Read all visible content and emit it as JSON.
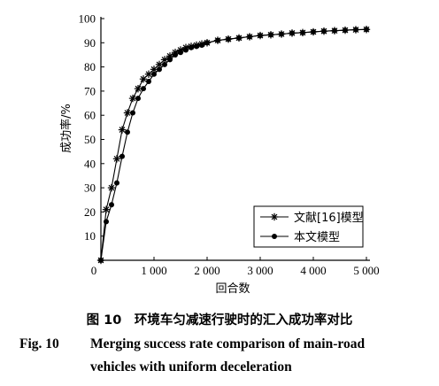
{
  "chart_data": {
    "type": "line",
    "xlabel": "回合数",
    "ylabel": "成功率/%",
    "xlim": [
      0,
      5000
    ],
    "ylim": [
      0,
      100
    ],
    "xticks": [
      1000,
      2000,
      3000,
      4000,
      5000
    ],
    "xtick_labels": [
      "1 000",
      "2 000",
      "3 000",
      "4 000",
      "5 000"
    ],
    "origin_label": "0",
    "yticks": [
      10,
      20,
      30,
      40,
      50,
      60,
      70,
      80,
      90,
      100
    ],
    "grid": false,
    "legend_position": "lower-right",
    "series": [
      {
        "name": "文献[16]模型",
        "marker": "asterisk",
        "x": [
          0,
          100,
          200,
          300,
          400,
          500,
          600,
          700,
          800,
          900,
          1000,
          1100,
          1200,
          1300,
          1400,
          1500,
          1600,
          1700,
          1800,
          1900,
          2000,
          2200,
          2400,
          2600,
          2800,
          3000,
          3200,
          3400,
          3600,
          3800,
          4000,
          4200,
          4400,
          4600,
          4800,
          5000
        ],
        "values": [
          0,
          21,
          30,
          42,
          54,
          61,
          67,
          71,
          75,
          77,
          79,
          81,
          83,
          84.5,
          86,
          87,
          88,
          88.5,
          89,
          89.5,
          90,
          91,
          91.5,
          92,
          92.5,
          93,
          93.3,
          93.6,
          94,
          94.2,
          94.5,
          94.8,
          95,
          95.2,
          95.4,
          95.5
        ]
      },
      {
        "name": "本文模型",
        "marker": "dot",
        "x": [
          0,
          100,
          200,
          300,
          400,
          500,
          600,
          700,
          800,
          900,
          1000,
          1100,
          1200,
          1300,
          1400,
          1500,
          1600,
          1700,
          1800,
          1900,
          2000,
          2200,
          2400,
          2600,
          2800,
          3000,
          3200,
          3400,
          3600,
          3800,
          4000,
          4200,
          4400,
          4600,
          4800,
          5000
        ],
        "values": [
          0,
          16,
          23,
          32,
          43,
          53,
          61,
          67,
          71,
          74,
          77,
          79,
          81,
          83,
          85,
          86,
          87,
          88,
          88.5,
          89,
          90,
          91,
          91.5,
          92,
          92.5,
          93,
          93.3,
          93.6,
          94,
          94.2,
          94.5,
          94.8,
          95,
          95.2,
          95.4,
          95.5
        ]
      }
    ]
  },
  "caption": {
    "cn": "图 10　环境车匀减速行驶时的汇入成功率对比",
    "en_label": "Fig. 10",
    "en_line1": "Merging success rate comparison of main-road",
    "en_line2": "vehicles with uniform deceleration"
  }
}
